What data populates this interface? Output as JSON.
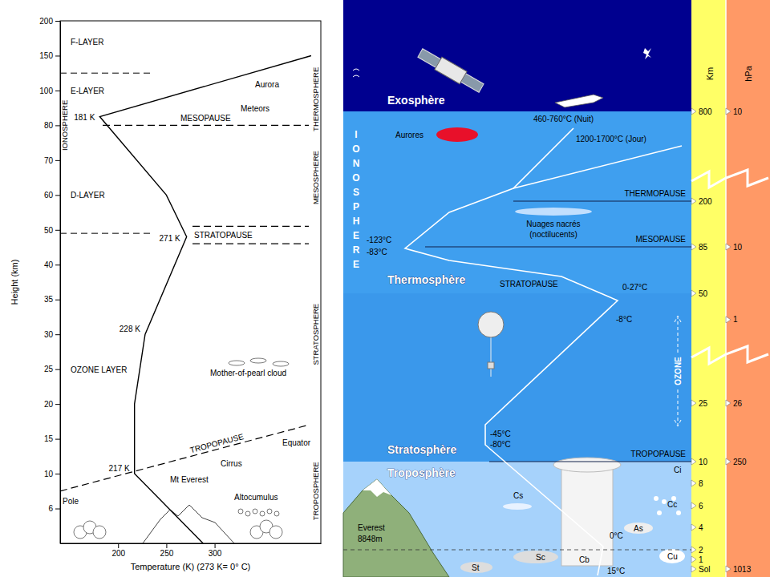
{
  "chart_data": {
    "type": "line",
    "x": [
      288,
      217,
      217,
      228,
      271,
      250,
      181,
      400
    ],
    "values": [
      0,
      10,
      20,
      30,
      48,
      60,
      85,
      150
    ],
    "color": "#000000",
    "xlim": [
      140,
      410
    ],
    "xticks": [
      200,
      250,
      300
    ],
    "ylim": [
      0,
      200
    ],
    "yticks": [
      6,
      10,
      15,
      20,
      25,
      30,
      35,
      40,
      50,
      60,
      70,
      80,
      100,
      150,
      200
    ],
    "x_label": "Temperature (K) (273 K= 0° C)",
    "y_label": "Height (km)",
    "point_labels": [
      {
        "label": "217 K",
        "x": 217,
        "y": 10
      },
      {
        "label": "228 K",
        "x": 228,
        "y": 30
      },
      {
        "label": "271 K",
        "x": 271,
        "y": 48
      },
      {
        "label": "181 K",
        "x": 181,
        "y": 85
      }
    ],
    "layers": [
      {
        "label": "F-LAYER",
        "height": 170
      },
      {
        "label": "E-LAYER",
        "height": 100
      },
      {
        "label": "D-LAYER",
        "height": 60
      },
      {
        "label": "OZONE LAYER",
        "height": 25
      }
    ],
    "layer_boundaries": [
      125,
      49
    ],
    "pauses": [
      {
        "label": "MESOPAUSE",
        "heights": [
          80
        ]
      },
      {
        "label": "STRATOPAUSE",
        "heights": [
          46,
          51
        ]
      }
    ],
    "tropopause": {
      "label": "TROPOPAUSE",
      "pole": 8,
      "equator": 17
    },
    "regions": [
      {
        "label": "IONOSPHERE",
        "height": 80,
        "side": "left"
      },
      {
        "label": "THERMOSPHERE",
        "height": 95,
        "side": "right"
      },
      {
        "label": "MESOSPHERE",
        "height": 65,
        "side": "right"
      },
      {
        "label": "STRATOSPHERE",
        "height": 30,
        "side": "right"
      },
      {
        "label": "TROPOSPHERE",
        "height": 8,
        "side": "right"
      }
    ],
    "features": [
      {
        "label": "Aurora",
        "height": 105
      },
      {
        "label": "Meteors",
        "height": 88
      },
      {
        "label": "Mother-of-pearl cloud",
        "height": 24
      },
      {
        "label": "Cirrus",
        "height": 11
      },
      {
        "label": "Equator",
        "height": 14
      },
      {
        "label": "Pole",
        "height": 6.5
      },
      {
        "label": "Mt Everest",
        "height": 9
      },
      {
        "label": "Altocumulus",
        "height": 7
      }
    ]
  },
  "diagram": {
    "km_axis": {
      "title": "Km",
      "ticks": [
        {
          "value": 0,
          "label": "Sol"
        },
        1,
        2,
        4,
        6,
        8,
        10,
        25,
        50,
        85,
        200,
        800
      ]
    },
    "hpa_axis": {
      "title": "hPa",
      "ticks": [
        {
          "km": 800,
          "label": "10"
        },
        {
          "km": 85,
          "label": "10"
        },
        {
          "km": 44,
          "label": "1"
        },
        {
          "km": 25,
          "label": "26"
        },
        {
          "km": 10,
          "label": "250"
        },
        {
          "km": 0,
          "label": "1013"
        }
      ]
    },
    "layers": [
      {
        "label": "Exosphère",
        "from": 800
      },
      {
        "label": "Thermosphère",
        "from": 50,
        "to": 800
      },
      {
        "label": "Stratosphère",
        "from": 10,
        "to": 50
      },
      {
        "label": "Troposphère",
        "from": 0,
        "to": 10
      }
    ],
    "ionosphere": "IONOSPHERE",
    "boundaries": [
      {
        "label": "THERMOPAUSE",
        "km": 200
      },
      {
        "label": "MESOPAUSE",
        "km": 85
      },
      {
        "label": "STRATOPAUSE",
        "km": 50
      },
      {
        "label": "TROPOPAUSE",
        "km": 10
      }
    ],
    "temperatures": [
      "460-760°C (Nuit)",
      "1200-1700°C (Jour)",
      "-123°C",
      "-83°C",
      "0-27°C",
      "-8°C",
      "-45°C",
      "-80°C",
      "0°C",
      "15°C"
    ],
    "aurora": "Aurores",
    "noctilucent": [
      "Nuages nacrés",
      "(noctilucents)"
    ],
    "ozone": "OZONE",
    "everest": [
      "Everest",
      "8848m"
    ],
    "clouds": [
      "Ci",
      "Cs",
      "Cc",
      "As",
      "Cu",
      "Sc",
      "Cb",
      "St"
    ]
  }
}
